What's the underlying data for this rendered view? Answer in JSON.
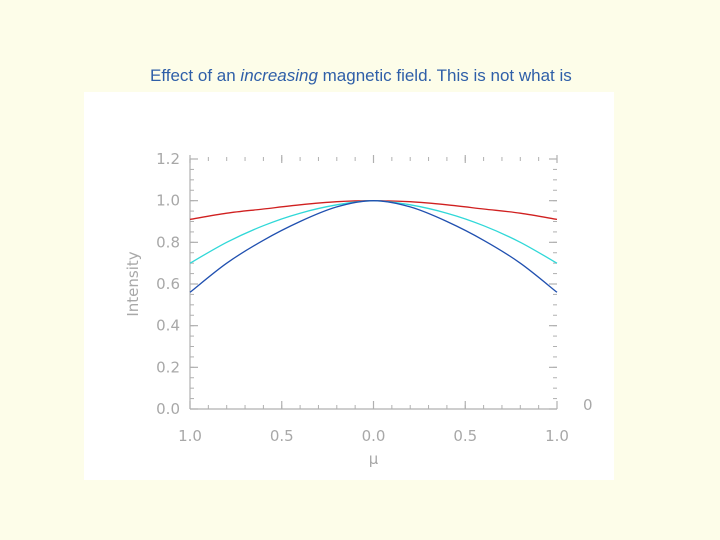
{
  "slide": {
    "caption_prefix": "Effect of an ",
    "caption_italic": "increasing",
    "caption_suffix": " magnetic field.  This is not what is observed."
  },
  "chart_data": {
    "type": "line",
    "title": "",
    "xlabel": "μ",
    "ylabel": "Intensity",
    "x_tick_labels": [
      "1.0",
      "0.5",
      "0.0",
      "0.5",
      "1.0"
    ],
    "y_tick_labels": [
      "0.0",
      "0.2",
      "0.4",
      "0.6",
      "0.8",
      "1.0",
      "1.2"
    ],
    "xlim": [
      -1.0,
      1.0
    ],
    "ylim": [
      0.0,
      1.2
    ],
    "grid": false,
    "series": [
      {
        "name": "red",
        "color": "#d02020",
        "x": [
          -1.0,
          -0.8,
          -0.6,
          -0.4,
          -0.2,
          0.0,
          0.2,
          0.4,
          0.6,
          0.8,
          1.0
        ],
        "values": [
          0.91,
          0.94,
          0.96,
          0.98,
          0.995,
          1.0,
          0.995,
          0.98,
          0.96,
          0.94,
          0.91
        ]
      },
      {
        "name": "cyan",
        "color": "#30d8d8",
        "x": [
          -1.0,
          -0.8,
          -0.6,
          -0.4,
          -0.2,
          0.0,
          0.2,
          0.4,
          0.6,
          0.8,
          1.0
        ],
        "values": [
          0.7,
          0.8,
          0.88,
          0.94,
          0.98,
          1.0,
          0.98,
          0.94,
          0.88,
          0.8,
          0.7
        ]
      },
      {
        "name": "blue",
        "color": "#2050b0",
        "x": [
          -1.0,
          -0.8,
          -0.6,
          -0.4,
          -0.2,
          0.0,
          0.2,
          0.4,
          0.6,
          0.8,
          1.0
        ],
        "values": [
          0.56,
          0.7,
          0.81,
          0.9,
          0.97,
          1.0,
          0.97,
          0.9,
          0.81,
          0.7,
          0.56
        ]
      }
    ],
    "partial_label": "0"
  }
}
